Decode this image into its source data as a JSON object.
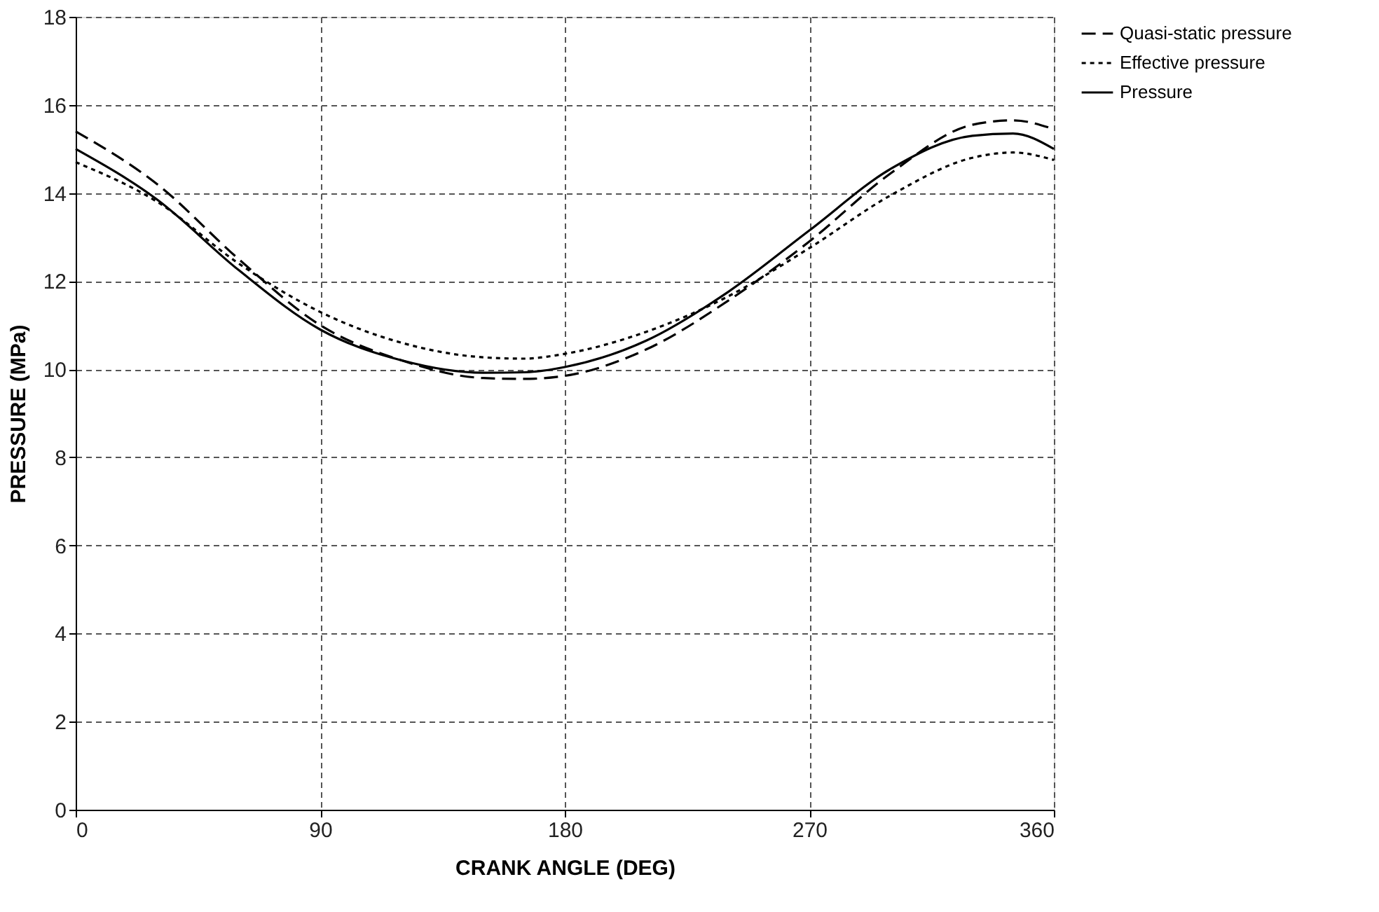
{
  "chart_data": {
    "type": "line",
    "xlabel": "CRANK ANGLE (DEG)",
    "ylabel": "PRESSURE (MPa)",
    "xlim": [
      0,
      360
    ],
    "xticks": [
      0,
      90,
      180,
      270,
      360
    ],
    "ylim": [
      0,
      18
    ],
    "yticks": [
      0,
      2,
      4,
      6,
      8,
      10,
      12,
      14,
      16,
      18
    ],
    "grid": true,
    "legend": "right",
    "marker": "none",
    "x": [
      0,
      30,
      60,
      90,
      120,
      150,
      165,
      180,
      210,
      240,
      270,
      300,
      330,
      345,
      360
    ],
    "series": [
      {
        "name": "Quasi-static pressure",
        "color": "#000000",
        "line_style": "dashed",
        "values": [
          15.4,
          14.2,
          12.5,
          11.0,
          10.2,
          9.8,
          9.78,
          9.85,
          10.45,
          11.55,
          12.9,
          14.45,
          15.55,
          15.65,
          15.45
        ]
      },
      {
        "name": "Effective pressure",
        "color": "#000000",
        "line_style": "dotted",
        "values": [
          14.7,
          13.8,
          12.4,
          11.3,
          10.6,
          10.27,
          10.24,
          10.35,
          10.85,
          11.65,
          12.75,
          13.95,
          14.8,
          14.92,
          14.75
        ]
      },
      {
        "name": "Pressure",
        "color": "#000000",
        "line_style": "solid",
        "values": [
          15.0,
          13.85,
          12.25,
          10.9,
          10.2,
          9.92,
          9.93,
          10.05,
          10.65,
          11.75,
          13.15,
          14.55,
          15.3,
          15.35,
          15.0
        ]
      }
    ]
  }
}
